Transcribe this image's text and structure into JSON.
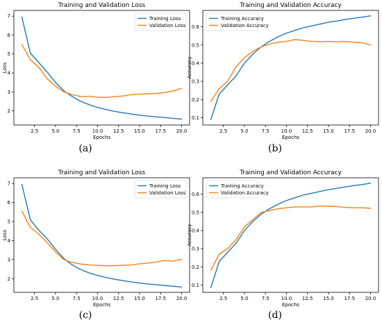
{
  "colors": {
    "series_1": "#1f77b4",
    "series_2": "#ff7f0e",
    "axis": "#000000"
  },
  "captions": [
    "(a)",
    "(b)",
    "(c)",
    "(d)"
  ],
  "chart_data": [
    {
      "type": "line",
      "title": "Training and Validation Loss",
      "xlabel": "Epochs",
      "ylabel": "Loss",
      "xlim": [
        0.05,
        20.95
      ],
      "ylim": [
        1.25,
        7.3
      ],
      "xticks": [
        2.5,
        5.0,
        7.5,
        10.0,
        12.5,
        15.0,
        17.5,
        20.0
      ],
      "xtick_labels": [
        "2.5",
        "5.0",
        "7.5",
        "10.0",
        "12.5",
        "15.0",
        "17.5",
        "20.0"
      ],
      "yticks": [
        2,
        3,
        4,
        5,
        6,
        7
      ],
      "ytick_labels": [
        "2",
        "3",
        "4",
        "5",
        "6",
        "7"
      ],
      "legend_position": "top-right",
      "grid": false,
      "x": [
        1,
        2,
        3,
        4,
        5,
        6,
        7,
        8,
        9,
        10,
        11,
        12,
        13,
        14,
        15,
        16,
        17,
        18,
        19,
        20
      ],
      "series": [
        {
          "name": "Training Loss",
          "values": [
            6.95,
            5.05,
            4.55,
            4.05,
            3.5,
            3.05,
            2.75,
            2.5,
            2.32,
            2.18,
            2.07,
            1.97,
            1.9,
            1.83,
            1.77,
            1.72,
            1.68,
            1.64,
            1.6,
            1.56
          ]
        },
        {
          "name": "Validation Loss",
          "values": [
            5.5,
            4.7,
            4.3,
            3.7,
            3.3,
            3.0,
            2.85,
            2.75,
            2.77,
            2.72,
            2.7,
            2.75,
            2.78,
            2.85,
            2.88,
            2.9,
            2.92,
            2.97,
            3.05,
            3.18
          ]
        }
      ]
    },
    {
      "type": "line",
      "title": "Training and Validation Accuracy",
      "xlabel": "Epochs",
      "ylabel": "Accuracy",
      "xlim": [
        0.05,
        20.95
      ],
      "ylim": [
        0.06,
        0.69
      ],
      "xticks": [
        2.5,
        5.0,
        7.5,
        10.0,
        12.5,
        15.0,
        17.5,
        20.0
      ],
      "xtick_labels": [
        "2.5",
        "5.0",
        "7.5",
        "10.0",
        "12.5",
        "15.0",
        "17.5",
        "20.0"
      ],
      "yticks": [
        0.1,
        0.2,
        0.3,
        0.4,
        0.5,
        0.6
      ],
      "ytick_labels": [
        "0.1",
        "0.2",
        "0.3",
        "0.4",
        "0.5",
        "0.6"
      ],
      "legend_position": "top-left",
      "grid": false,
      "x": [
        1,
        2,
        3,
        4,
        5,
        6,
        7,
        8,
        9,
        10,
        11,
        12,
        13,
        14,
        15,
        16,
        17,
        18,
        19,
        20
      ],
      "series": [
        {
          "name": "Training Accuracy",
          "values": [
            0.09,
            0.23,
            0.28,
            0.33,
            0.4,
            0.45,
            0.49,
            0.52,
            0.545,
            0.565,
            0.58,
            0.595,
            0.605,
            0.615,
            0.625,
            0.632,
            0.64,
            0.647,
            0.653,
            0.66
          ]
        },
        {
          "name": "Validation Accuracy",
          "values": [
            0.19,
            0.26,
            0.3,
            0.38,
            0.43,
            0.465,
            0.49,
            0.505,
            0.515,
            0.52,
            0.53,
            0.525,
            0.52,
            0.518,
            0.52,
            0.518,
            0.52,
            0.515,
            0.512,
            0.5
          ]
        }
      ]
    },
    {
      "type": "line",
      "title": "Training and Validation Loss",
      "xlabel": "Epochs",
      "ylabel": "Loss",
      "xlim": [
        0.05,
        20.95
      ],
      "ylim": [
        1.28,
        7.3
      ],
      "xticks": [
        2.5,
        5.0,
        7.5,
        10.0,
        12.5,
        15.0,
        17.5,
        20.0
      ],
      "xtick_labels": [
        "2.5",
        "5.0",
        "7.5",
        "10.0",
        "12.5",
        "15.0",
        "17.5",
        "20.0"
      ],
      "yticks": [
        2,
        3,
        4,
        5,
        6,
        7
      ],
      "ytick_labels": [
        "2",
        "3",
        "4",
        "5",
        "6",
        "7"
      ],
      "legend_position": "top-right",
      "grid": false,
      "x": [
        1,
        2,
        3,
        4,
        5,
        6,
        7,
        8,
        9,
        10,
        11,
        12,
        13,
        14,
        15,
        16,
        17,
        18,
        19,
        20
      ],
      "series": [
        {
          "name": "Training Loss",
          "values": [
            6.95,
            5.1,
            4.55,
            4.1,
            3.55,
            3.05,
            2.72,
            2.48,
            2.3,
            2.17,
            2.06,
            1.97,
            1.9,
            1.83,
            1.77,
            1.72,
            1.68,
            1.64,
            1.6,
            1.56
          ]
        },
        {
          "name": "Validation Loss",
          "values": [
            5.55,
            4.7,
            4.35,
            3.9,
            3.4,
            3.0,
            2.85,
            2.77,
            2.72,
            2.7,
            2.68,
            2.68,
            2.7,
            2.72,
            2.78,
            2.82,
            2.88,
            2.95,
            2.92,
            3.02
          ]
        }
      ]
    },
    {
      "type": "line",
      "title": "Training and Validation Accuracy",
      "xlabel": "Epochs",
      "ylabel": "Accuracy",
      "xlim": [
        0.05,
        20.95
      ],
      "ylim": [
        0.06,
        0.69
      ],
      "xticks": [
        2.5,
        5.0,
        7.5,
        10.0,
        12.5,
        15.0,
        17.5,
        20.0
      ],
      "xtick_labels": [
        "2.5",
        "5.0",
        "7.5",
        "10.0",
        "12.5",
        "15.0",
        "17.5",
        "20.0"
      ],
      "yticks": [
        0.1,
        0.2,
        0.3,
        0.4,
        0.5,
        0.6
      ],
      "ytick_labels": [
        "0.1",
        "0.2",
        "0.3",
        "0.4",
        "0.5",
        "0.6"
      ],
      "legend_position": "top-left",
      "grid": false,
      "x": [
        1,
        2,
        3,
        4,
        5,
        6,
        7,
        8,
        9,
        10,
        11,
        12,
        13,
        14,
        15,
        16,
        17,
        18,
        19,
        20
      ],
      "series": [
        {
          "name": "Training Accuracy",
          "values": [
            0.085,
            0.23,
            0.28,
            0.33,
            0.4,
            0.45,
            0.49,
            0.52,
            0.545,
            0.565,
            0.58,
            0.595,
            0.605,
            0.615,
            0.625,
            0.632,
            0.64,
            0.647,
            0.653,
            0.66
          ]
        },
        {
          "name": "Validation Accuracy",
          "values": [
            0.18,
            0.27,
            0.3,
            0.35,
            0.42,
            0.46,
            0.5,
            0.51,
            0.52,
            0.525,
            0.53,
            0.53,
            0.53,
            0.535,
            0.533,
            0.532,
            0.527,
            0.525,
            0.525,
            0.522
          ]
        }
      ]
    }
  ]
}
